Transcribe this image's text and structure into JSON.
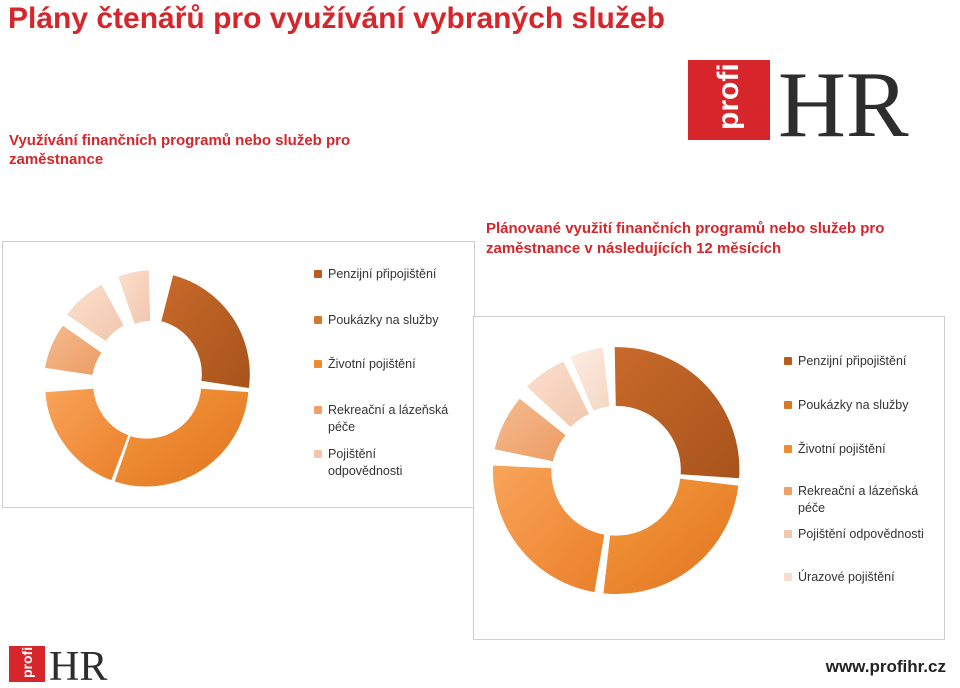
{
  "header": {
    "title": "Plány čtenářů pro využívání vybraných služeb",
    "subtitle": "Využívání finančních programů nebo služeb pro zaměstnance"
  },
  "logo": {
    "profi_text": "profi",
    "hr_text": "HR"
  },
  "chart1": {
    "legend": [
      {
        "label": "Penzijní připojištění",
        "color": "#b85d1f"
      },
      {
        "label": "Poukázky na služby",
        "color": "#d9782a"
      },
      {
        "label": "Životní pojištění",
        "color": "#f08a2e"
      },
      {
        "label": "Rekreační a lázeňská péče",
        "color": "#f2a067"
      },
      {
        "label": "Pojištění odpovědnosti",
        "color": "#f4c7ad"
      }
    ]
  },
  "chart2": {
    "title": "Plánované využití finančních programů nebo služeb pro zaměstnance v následujících 12 měsících",
    "legend": [
      {
        "label": "Penzijní připojištění",
        "color": "#b85d1f"
      },
      {
        "label": "Poukázky na služby",
        "color": "#d9782a"
      },
      {
        "label": "Životní pojištění",
        "color": "#f08a2e"
      },
      {
        "label": "Rekreační a lázeňská péče",
        "color": "#f2a067"
      },
      {
        "label": "Pojištění odpovědnosti",
        "color": "#f4c7ad"
      },
      {
        "label": "Úrazové pojištění",
        "color": "#f8dccb"
      }
    ]
  },
  "footer": {
    "url": "www.profihr.cz"
  }
}
